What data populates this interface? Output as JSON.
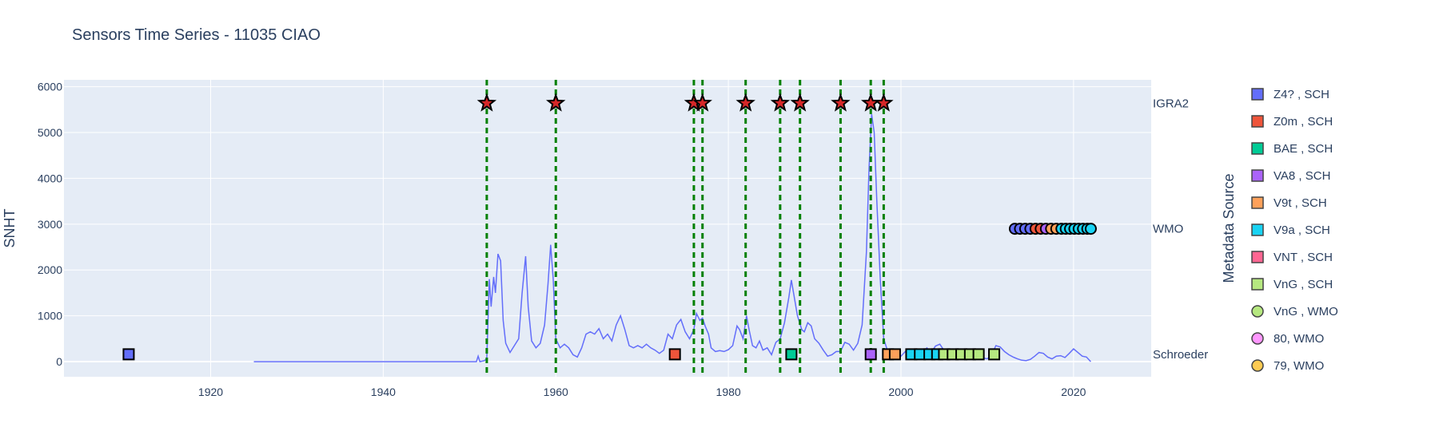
{
  "chart_data": {
    "type": "line",
    "title": "Sensors Time Series - 11035 CIAO",
    "xlabel": "",
    "ylabel": "SNHT",
    "xlim": [
      1903,
      2029
    ],
    "ylim": [
      -330,
      6150
    ],
    "x_ticks": [
      1920,
      1940,
      1960,
      1980,
      2000,
      2020
    ],
    "y_ticks": [
      0,
      1000,
      2000,
      3000,
      4000,
      5000,
      6000
    ],
    "grid": true,
    "legend_title": "Metadata Source",
    "legend_position": "right",
    "row_labels": [
      {
        "label": "IGRA2",
        "y": 5640
      },
      {
        "label": "WMO",
        "y": 2900
      },
      {
        "label": "Schroeder",
        "y": 160
      }
    ],
    "series": [
      {
        "kind": "line",
        "color": "#636efa",
        "points": [
          [
            1925,
            0
          ],
          [
            1950.8,
            0
          ],
          [
            1951.0,
            120
          ],
          [
            1951.2,
            0
          ],
          [
            1951.7,
            20
          ],
          [
            1952.0,
            60
          ],
          [
            1952.3,
            1800
          ],
          [
            1952.5,
            1200
          ],
          [
            1952.8,
            1850
          ],
          [
            1953.0,
            1500
          ],
          [
            1953.3,
            2350
          ],
          [
            1953.6,
            2200
          ],
          [
            1953.9,
            900
          ],
          [
            1954.2,
            400
          ],
          [
            1954.7,
            200
          ],
          [
            1955.2,
            350
          ],
          [
            1955.7,
            500
          ],
          [
            1956.1,
            1500
          ],
          [
            1956.5,
            2300
          ],
          [
            1956.8,
            1200
          ],
          [
            1957.2,
            450
          ],
          [
            1957.7,
            300
          ],
          [
            1958.2,
            400
          ],
          [
            1958.7,
            800
          ],
          [
            1959.1,
            1700
          ],
          [
            1959.4,
            2550
          ],
          [
            1959.7,
            1800
          ],
          [
            1960.0,
            500
          ],
          [
            1960.5,
            300
          ],
          [
            1961.0,
            380
          ],
          [
            1961.5,
            300
          ],
          [
            1962.0,
            150
          ],
          [
            1962.5,
            100
          ],
          [
            1963.0,
            300
          ],
          [
            1963.5,
            600
          ],
          [
            1964.0,
            650
          ],
          [
            1964.5,
            600
          ],
          [
            1965.0,
            720
          ],
          [
            1965.5,
            500
          ],
          [
            1966.0,
            600
          ],
          [
            1966.5,
            450
          ],
          [
            1967.0,
            800
          ],
          [
            1967.5,
            1000
          ],
          [
            1968.0,
            700
          ],
          [
            1968.5,
            350
          ],
          [
            1969.0,
            300
          ],
          [
            1969.5,
            350
          ],
          [
            1970.0,
            300
          ],
          [
            1970.5,
            380
          ],
          [
            1971.0,
            300
          ],
          [
            1971.5,
            250
          ],
          [
            1972.0,
            180
          ],
          [
            1972.5,
            250
          ],
          [
            1973.0,
            600
          ],
          [
            1973.5,
            500
          ],
          [
            1974.0,
            800
          ],
          [
            1974.5,
            920
          ],
          [
            1975.0,
            650
          ],
          [
            1975.5,
            500
          ],
          [
            1976.0,
            700
          ],
          [
            1976.3,
            1050
          ],
          [
            1976.7,
            900
          ],
          [
            1977.0,
            950
          ],
          [
            1977.3,
            780
          ],
          [
            1977.7,
            600
          ],
          [
            1978.0,
            300
          ],
          [
            1978.5,
            220
          ],
          [
            1979.0,
            240
          ],
          [
            1979.5,
            220
          ],
          [
            1980.0,
            260
          ],
          [
            1980.5,
            350
          ],
          [
            1981.0,
            780
          ],
          [
            1981.3,
            700
          ],
          [
            1981.7,
            500
          ],
          [
            1982.1,
            1000
          ],
          [
            1982.4,
            700
          ],
          [
            1982.8,
            350
          ],
          [
            1983.2,
            300
          ],
          [
            1983.6,
            450
          ],
          [
            1984.0,
            250
          ],
          [
            1984.5,
            300
          ],
          [
            1985.0,
            150
          ],
          [
            1985.5,
            420
          ],
          [
            1986.0,
            500
          ],
          [
            1986.5,
            850
          ],
          [
            1987.0,
            1400
          ],
          [
            1987.3,
            1780
          ],
          [
            1987.6,
            1450
          ],
          [
            1988.0,
            1000
          ],
          [
            1988.5,
            700
          ],
          [
            1988.8,
            650
          ],
          [
            1989.2,
            850
          ],
          [
            1989.6,
            780
          ],
          [
            1990.0,
            500
          ],
          [
            1990.5,
            400
          ],
          [
            1991.0,
            250
          ],
          [
            1991.5,
            120
          ],
          [
            1992.0,
            150
          ],
          [
            1992.5,
            220
          ],
          [
            1993.0,
            220
          ],
          [
            1993.5,
            420
          ],
          [
            1994.0,
            380
          ],
          [
            1994.5,
            250
          ],
          [
            1995.0,
            400
          ],
          [
            1995.5,
            800
          ],
          [
            1996.0,
            2400
          ],
          [
            1996.3,
            4200
          ],
          [
            1996.6,
            5400
          ],
          [
            1996.9,
            5000
          ],
          [
            1997.2,
            3500
          ],
          [
            1997.6,
            1800
          ],
          [
            1998.0,
            500
          ],
          [
            1998.5,
            200
          ],
          [
            1999.0,
            120
          ],
          [
            1999.5,
            60
          ],
          [
            2000.0,
            120
          ],
          [
            2000.5,
            220
          ],
          [
            2001.0,
            200
          ],
          [
            2001.5,
            150
          ],
          [
            2002.0,
            260
          ],
          [
            2002.5,
            200
          ],
          [
            2003.0,
            300
          ],
          [
            2003.5,
            200
          ],
          [
            2004.0,
            340
          ],
          [
            2004.5,
            380
          ],
          [
            2005.0,
            240
          ],
          [
            2005.5,
            160
          ],
          [
            2006.0,
            200
          ],
          [
            2006.5,
            120
          ],
          [
            2007.0,
            150
          ],
          [
            2007.5,
            100
          ],
          [
            2008.0,
            220
          ],
          [
            2008.5,
            160
          ],
          [
            2009.0,
            120
          ],
          [
            2009.5,
            80
          ],
          [
            2010.0,
            60
          ],
          [
            2010.5,
            140
          ],
          [
            2011.0,
            350
          ],
          [
            2011.5,
            320
          ],
          [
            2012.0,
            220
          ],
          [
            2012.5,
            150
          ],
          [
            2013.0,
            100
          ],
          [
            2013.5,
            60
          ],
          [
            2014.0,
            30
          ],
          [
            2014.5,
            20
          ],
          [
            2015.0,
            50
          ],
          [
            2015.5,
            120
          ],
          [
            2016.0,
            200
          ],
          [
            2016.5,
            180
          ],
          [
            2017.0,
            100
          ],
          [
            2017.5,
            60
          ],
          [
            2018.0,
            120
          ],
          [
            2018.5,
            130
          ],
          [
            2019.0,
            90
          ],
          [
            2019.5,
            180
          ],
          [
            2020.0,
            280
          ],
          [
            2020.5,
            200
          ],
          [
            2021.0,
            120
          ],
          [
            2021.5,
            100
          ],
          [
            2022.0,
            0
          ]
        ]
      }
    ],
    "breakpoints": [
      1952,
      1960,
      1976,
      1977,
      1982,
      1986,
      1988.3,
      1993,
      1996.5,
      1998
    ],
    "igra2_markers": [
      1952,
      1960,
      1976,
      1977,
      1982,
      1986,
      1988.3,
      1993,
      1996.5,
      1998
    ],
    "schroeder_markers": [
      {
        "x": 1910.5,
        "color": "#636efa"
      },
      {
        "x": 1973.8,
        "color": "#ef553b"
      },
      {
        "x": 1987.3,
        "color": "#00cc96"
      },
      {
        "x": 1996.5,
        "color": "#ab63fa"
      },
      {
        "x": 1998.5,
        "color": "#ffa15a"
      },
      {
        "x": 1999.3,
        "color": "#ffa15a"
      },
      {
        "x": 2001.2,
        "color": "#19d3f3"
      },
      {
        "x": 2002.2,
        "color": "#19d3f3"
      },
      {
        "x": 2003.3,
        "color": "#19d3f3"
      },
      {
        "x": 2004.2,
        "color": "#19d3f3"
      },
      {
        "x": 2005.0,
        "color": "#b6e880"
      },
      {
        "x": 2006.0,
        "color": "#b6e880"
      },
      {
        "x": 2007.0,
        "color": "#b6e880"
      },
      {
        "x": 2008.0,
        "color": "#b6e880"
      },
      {
        "x": 2009.0,
        "color": "#b6e880"
      },
      {
        "x": 2010.8,
        "color": "#b6e880"
      }
    ],
    "wmo_markers": [
      {
        "x": 2013.2,
        "color": "#636efa"
      },
      {
        "x": 2013.8,
        "color": "#636efa"
      },
      {
        "x": 2014.4,
        "color": "#636efa"
      },
      {
        "x": 2015.0,
        "color": "#636efa"
      },
      {
        "x": 2015.6,
        "color": "#ef553b"
      },
      {
        "x": 2016.2,
        "color": "#ef553b"
      },
      {
        "x": 2016.8,
        "color": "#ab63fa"
      },
      {
        "x": 2017.4,
        "color": "#ffa15a"
      },
      {
        "x": 2018.0,
        "color": "#ffa15a"
      },
      {
        "x": 2018.6,
        "color": "#19d3f3"
      },
      {
        "x": 2019.1,
        "color": "#19d3f3"
      },
      {
        "x": 2019.6,
        "color": "#19d3f3"
      },
      {
        "x": 2020.1,
        "color": "#19d3f3"
      },
      {
        "x": 2020.6,
        "color": "#19d3f3"
      },
      {
        "x": 2021.1,
        "color": "#19d3f3"
      },
      {
        "x": 2021.6,
        "color": "#19d3f3"
      },
      {
        "x": 2022.0,
        "color": "#19d3f3"
      }
    ],
    "legend": [
      {
        "label": "Z4? , SCH",
        "color": "#636efa",
        "shape": "square"
      },
      {
        "label": "Z0m , SCH",
        "color": "#ef553b",
        "shape": "square"
      },
      {
        "label": "BAE , SCH",
        "color": "#00cc96",
        "shape": "square"
      },
      {
        "label": "VA8 , SCH",
        "color": "#ab63fa",
        "shape": "square"
      },
      {
        "label": "V9t , SCH",
        "color": "#ffa15a",
        "shape": "square"
      },
      {
        "label": "V9a , SCH",
        "color": "#19d3f3",
        "shape": "square"
      },
      {
        "label": "VNT , SCH",
        "color": "#ff6692",
        "shape": "square"
      },
      {
        "label": "VnG , SCH",
        "color": "#b6e880",
        "shape": "square"
      },
      {
        "label": "VnG , WMO",
        "color": "#b6e880",
        "shape": "circle"
      },
      {
        "label": "80, WMO",
        "color": "#ff97ff",
        "shape": "circle"
      },
      {
        "label": "79, WMO",
        "color": "#fecb52",
        "shape": "circle"
      }
    ]
  }
}
